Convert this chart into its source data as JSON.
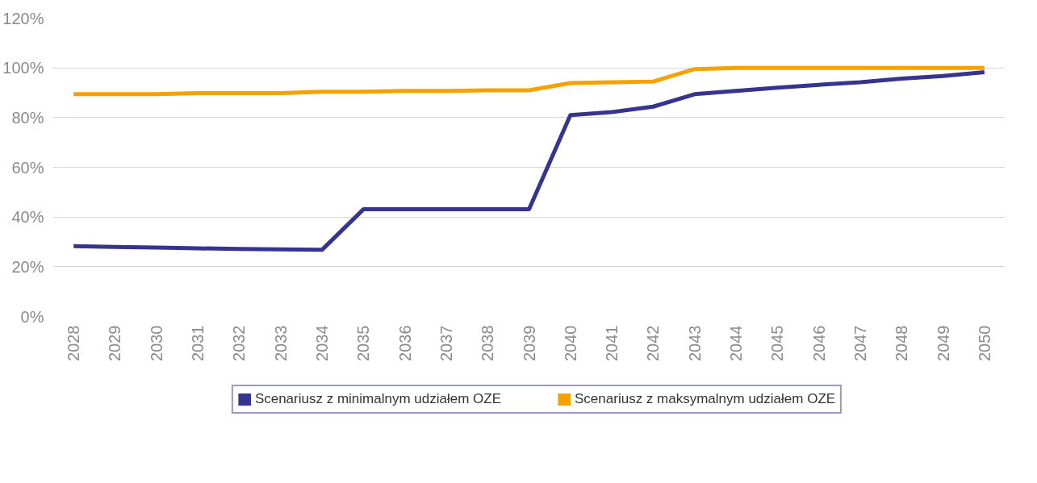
{
  "chart_data": {
    "type": "line",
    "categories": [
      "2028",
      "2029",
      "2030",
      "2031",
      "2032",
      "2033",
      "2034",
      "2035",
      "2036",
      "2037",
      "2038",
      "2039",
      "2040",
      "2041",
      "2042",
      "2043",
      "2044",
      "2045",
      "2046",
      "2047",
      "2048",
      "2049",
      "2050"
    ],
    "series": [
      {
        "name": "Scenariusz z minimalnym udziałem OZE",
        "color": "#35348f",
        "values": [
          28.3,
          28.0,
          27.7,
          27.4,
          27.2,
          27.0,
          26.8,
          43.1,
          43.1,
          43.1,
          43.1,
          43.1,
          81.0,
          82.2,
          84.4,
          89.4,
          90.7,
          92.0,
          93.2,
          94.2,
          95.7,
          96.7,
          98.3
        ]
      },
      {
        "name": "Scenariusz z maksymalnym udziałem OZE",
        "color": "#f5a200",
        "values": [
          89.4,
          89.4,
          89.4,
          89.8,
          89.8,
          89.8,
          90.4,
          90.4,
          90.7,
          90.7,
          91.0,
          91.0,
          93.9,
          94.2,
          94.5,
          99.5,
          100,
          100,
          100,
          100,
          100,
          100,
          100
        ]
      }
    ],
    "ylim": [
      0,
      120
    ],
    "yticks": [
      {
        "value": 0,
        "label": "0%"
      },
      {
        "value": 20,
        "label": "20%"
      },
      {
        "value": 40,
        "label": "40%"
      },
      {
        "value": 60,
        "label": "60%"
      },
      {
        "value": 80,
        "label": "80%"
      },
      {
        "value": 100,
        "label": "100%"
      },
      {
        "value": 120,
        "label": "120%"
      }
    ],
    "grid": "y",
    "legend": "bottom",
    "marker": "none",
    "line_style": "solid"
  }
}
